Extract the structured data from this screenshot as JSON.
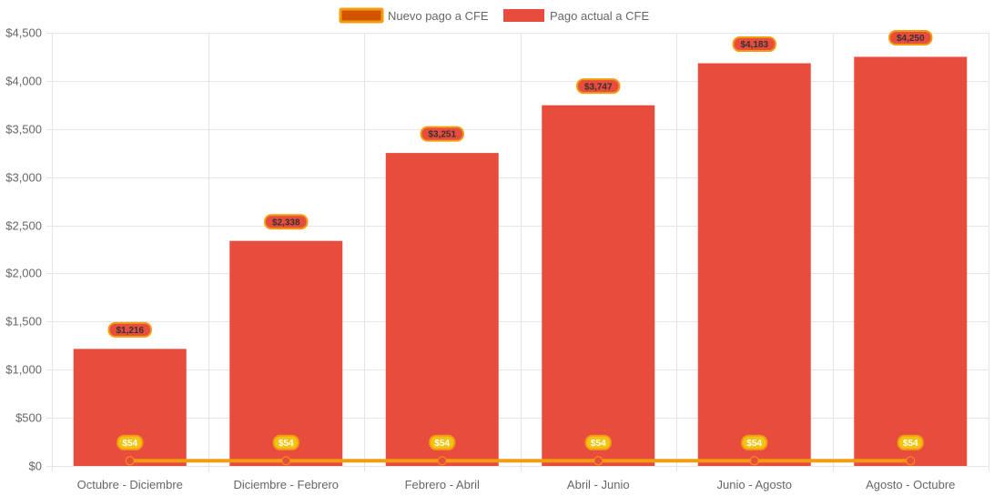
{
  "colors": {
    "bar_fill": "#e74c3c",
    "line": "#f39c12",
    "line_legend_fill": "#d35400",
    "line_point": "#e74c3c",
    "bar_label_bg": "#e74c3c",
    "bar_label_border": "#f39c12",
    "line_label_bg": "#f1c40f",
    "grid": "#e5e5e5",
    "axis_text": "#666666"
  },
  "chart_data": {
    "type": "bar",
    "title": "",
    "xlabel": "",
    "ylabel": "",
    "ylim": [
      0,
      4500
    ],
    "y_tick_step": 500,
    "y_tick_labels": [
      "$0",
      "$500",
      "$1,000",
      "$1,500",
      "$2,000",
      "$2,500",
      "$3,000",
      "$3,500",
      "$4,000",
      "$4,500"
    ],
    "grid": true,
    "legend_position": "top-center",
    "categories": [
      "Octubre - Diciembre",
      "Diciembre - Febrero",
      "Febrero - Abril",
      "Abril - Junio",
      "Junio - Agosto",
      "Agosto - Octubre"
    ],
    "series": [
      {
        "name": "Nuevo pago a CFE",
        "kind": "line",
        "values": [
          54,
          54,
          54,
          54,
          54,
          54
        ],
        "labels": [
          "$54",
          "$54",
          "$54",
          "$54",
          "$54",
          "$54"
        ]
      },
      {
        "name": "Pago actual a CFE",
        "kind": "bar",
        "values": [
          1216,
          2338,
          3251,
          3747,
          4183,
          4250
        ],
        "labels": [
          "$1,216",
          "$2,338",
          "$3,251",
          "$3,747",
          "$4,183",
          "$4,250"
        ]
      }
    ]
  }
}
